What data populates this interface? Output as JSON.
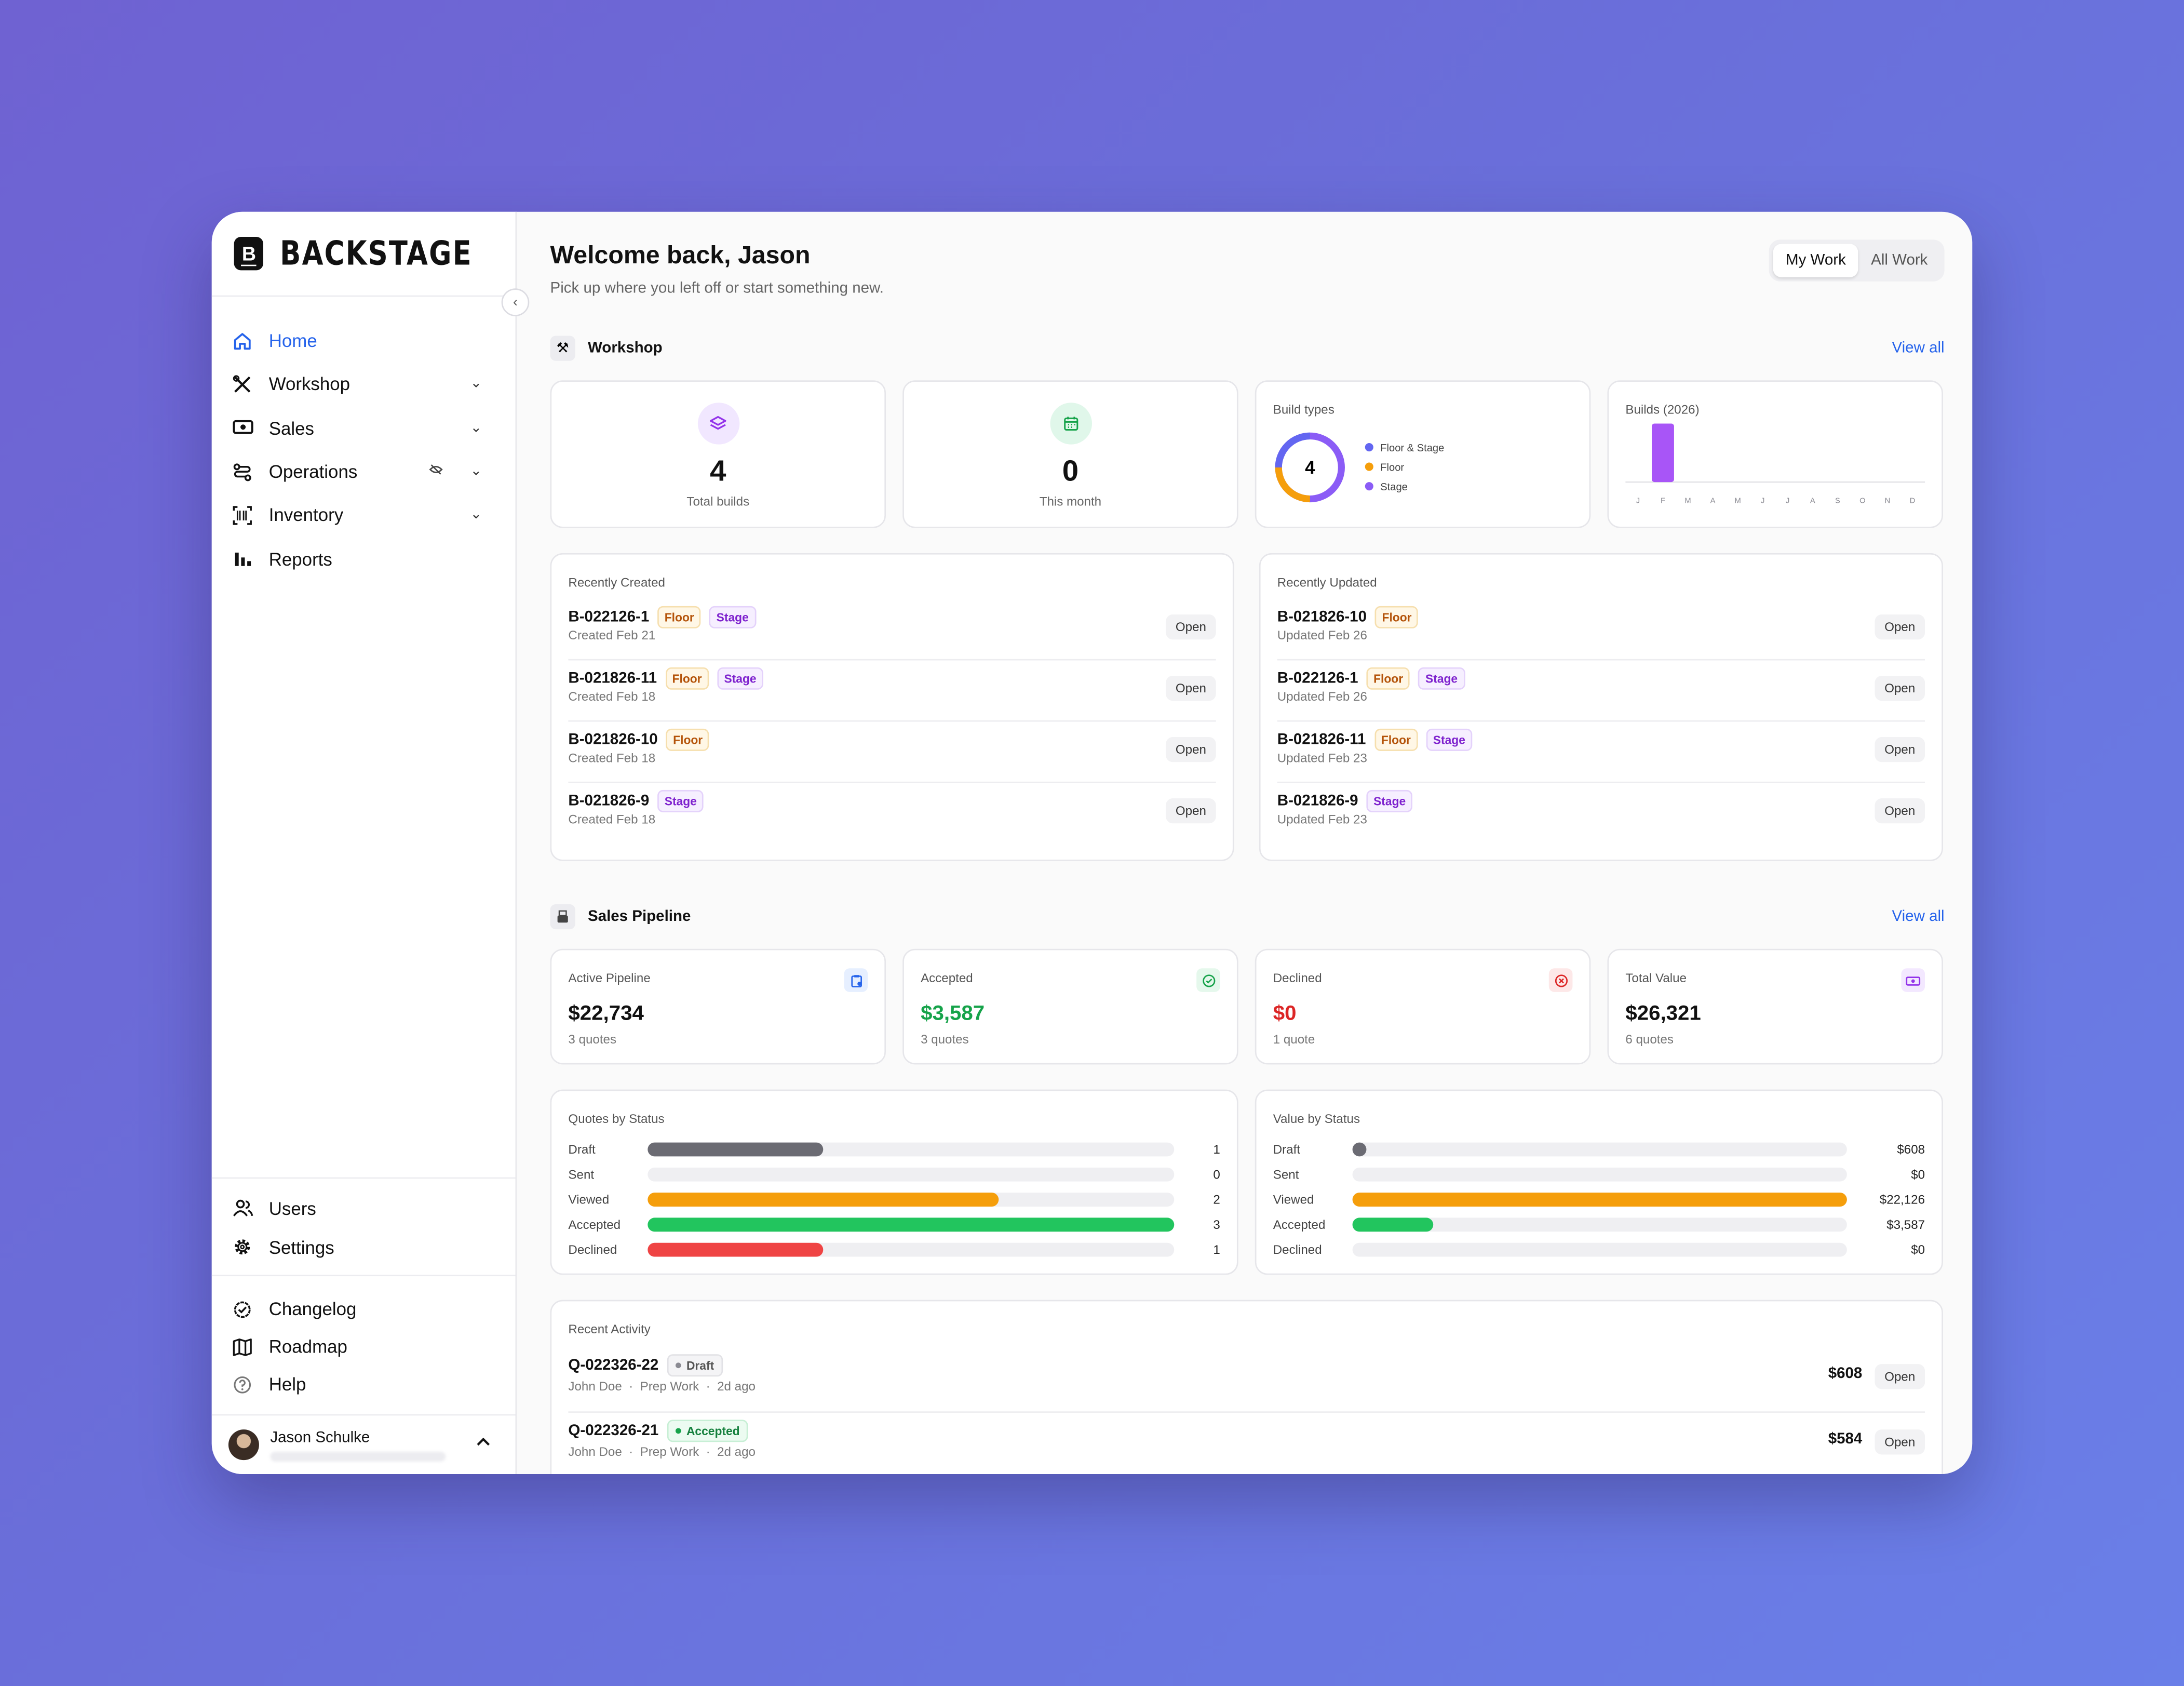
{
  "brand": {
    "logo_letter": "B",
    "name": "BACKSTAGE"
  },
  "sidebar": {
    "collapse_icon": "chevron-left-icon",
    "items": [
      {
        "label": "Home",
        "icon": "home-icon",
        "active": true
      },
      {
        "label": "Workshop",
        "icon": "tools-icon",
        "expandable": true
      },
      {
        "label": "Sales",
        "icon": "cash-icon",
        "expandable": true
      },
      {
        "label": "Operations",
        "icon": "route-icon",
        "expandable": true,
        "hidden_indicator": "eye-off-icon"
      },
      {
        "label": "Inventory",
        "icon": "barcode-icon",
        "expandable": true
      },
      {
        "label": "Reports",
        "icon": "bar-chart-icon"
      }
    ],
    "admin_items": [
      {
        "label": "Users",
        "icon": "users-icon"
      },
      {
        "label": "Settings",
        "icon": "gear-icon"
      }
    ],
    "help_items": [
      {
        "label": "Changelog",
        "icon": "badge-check-icon"
      },
      {
        "label": "Roadmap",
        "icon": "map-icon"
      },
      {
        "label": "Help",
        "icon": "help-circle-icon"
      }
    ],
    "user": {
      "name": "Jason Schulke"
    }
  },
  "header": {
    "title": "Welcome back, Jason",
    "subtitle": "Pick up where you left off or start something new.",
    "toggle": [
      "My Work",
      "All Work"
    ],
    "toggle_selected": "My Work"
  },
  "workshop": {
    "title": "Workshop",
    "view_all": "View all",
    "total_builds": {
      "value": "4",
      "label": "Total builds"
    },
    "this_month": {
      "value": "0",
      "label": "This month"
    },
    "build_types": {
      "label": "Build types",
      "total": "4",
      "legend": [
        {
          "name": "Floor & Stage",
          "color": "#6366f1"
        },
        {
          "name": "Floor",
          "color": "#f59e0b"
        },
        {
          "name": "Stage",
          "color": "#8b5cf6"
        }
      ]
    },
    "builds_chart": {
      "label": "Builds (2026)"
    },
    "recently_created": {
      "title": "Recently Created",
      "rows": [
        {
          "id": "B-022126-1",
          "tags": [
            "Floor",
            "Stage"
          ],
          "sub": "Created Feb 21",
          "action": "Open"
        },
        {
          "id": "B-021826-11",
          "tags": [
            "Floor",
            "Stage"
          ],
          "sub": "Created Feb 18",
          "action": "Open"
        },
        {
          "id": "B-021826-10",
          "tags": [
            "Floor"
          ],
          "sub": "Created Feb 18",
          "action": "Open"
        },
        {
          "id": "B-021826-9",
          "tags": [
            "Stage"
          ],
          "sub": "Created Feb 18",
          "action": "Open"
        }
      ]
    },
    "recently_updated": {
      "title": "Recently Updated",
      "rows": [
        {
          "id": "B-021826-10",
          "tags": [
            "Floor"
          ],
          "sub": "Updated Feb 26",
          "action": "Open"
        },
        {
          "id": "B-022126-1",
          "tags": [
            "Floor",
            "Stage"
          ],
          "sub": "Updated Feb 26",
          "action": "Open"
        },
        {
          "id": "B-021826-11",
          "tags": [
            "Floor",
            "Stage"
          ],
          "sub": "Updated Feb 23",
          "action": "Open"
        },
        {
          "id": "B-021826-9",
          "tags": [
            "Stage"
          ],
          "sub": "Updated Feb 23",
          "action": "Open"
        }
      ]
    }
  },
  "sales": {
    "title": "Sales Pipeline",
    "view_all": "View all",
    "cards": [
      {
        "label": "Active Pipeline",
        "value": "$22,734",
        "sub": "3 quotes",
        "color": "#111111",
        "icon": "clipboard-icon",
        "icon_color": "#2563eb",
        "icon_bg": "#e6efff"
      },
      {
        "label": "Accepted",
        "value": "$3,587",
        "sub": "3 quotes",
        "color": "#16a34a",
        "icon": "check-circle-icon",
        "icon_color": "#16a34a",
        "icon_bg": "#e5f8ec"
      },
      {
        "label": "Declined",
        "value": "$0",
        "sub": "1 quote",
        "color": "#dc2626",
        "icon": "x-circle-icon",
        "icon_color": "#dc2626",
        "icon_bg": "#fde8e8"
      },
      {
        "label": "Total Value",
        "value": "$26,321",
        "sub": "6 quotes",
        "color": "#111111",
        "icon": "cash-icon",
        "icon_color": "#9333ea",
        "icon_bg": "#f3e8ff"
      }
    ],
    "quotes_by_status": {
      "title": "Quotes by Status",
      "max": 3,
      "rows": [
        {
          "label": "Draft",
          "value": 1,
          "display": "1",
          "color": "#6b6b73"
        },
        {
          "label": "Sent",
          "value": 0,
          "display": "0",
          "color": "#9ca3af"
        },
        {
          "label": "Viewed",
          "value": 2,
          "display": "2",
          "color": "#f59e0b"
        },
        {
          "label": "Accepted",
          "value": 3,
          "display": "3",
          "color": "#22c55e"
        },
        {
          "label": "Declined",
          "value": 1,
          "display": "1",
          "color": "#ef4444"
        }
      ]
    },
    "value_by_status": {
      "title": "Value by Status",
      "max": 22126,
      "rows": [
        {
          "label": "Draft",
          "value": 608,
          "display": "$608",
          "color": "#6b6b73"
        },
        {
          "label": "Sent",
          "value": 0,
          "display": "$0",
          "color": "#9ca3af"
        },
        {
          "label": "Viewed",
          "value": 22126,
          "display": "$22,126",
          "color": "#f59e0b"
        },
        {
          "label": "Accepted",
          "value": 3587,
          "display": "$3,587",
          "color": "#22c55e"
        },
        {
          "label": "Declined",
          "value": 0,
          "display": "$0",
          "color": "#ef4444"
        }
      ]
    }
  },
  "activity": {
    "title": "Recent Activity",
    "rows": [
      {
        "id": "Q-022326-22",
        "status": "Draft",
        "sub": "John Doe  ·  Prep Work  ·  2d ago",
        "amount": "$608",
        "action": "Open"
      },
      {
        "id": "Q-022326-21",
        "status": "Accepted",
        "sub": "John Doe  ·  Prep Work  ·  2d ago",
        "amount": "$584",
        "action": "Open"
      }
    ]
  },
  "chart_data": {
    "type": "bar",
    "title": "Builds (2026)",
    "categories": [
      "J",
      "F",
      "M",
      "A",
      "M",
      "J",
      "J",
      "A",
      "S",
      "O",
      "N",
      "D"
    ],
    "values": [
      0,
      4,
      0,
      0,
      0,
      0,
      0,
      0,
      0,
      0,
      0,
      0
    ],
    "xlabel": "",
    "ylabel": "",
    "color": "#a855f7",
    "grid": false
  }
}
